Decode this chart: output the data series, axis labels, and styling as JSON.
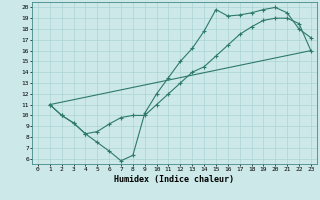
{
  "xlabel": "Humidex (Indice chaleur)",
  "bg_color": "#cce8e8",
  "line_color": "#2d7a6a",
  "grid_color": "#aad4d4",
  "xlim": [
    -0.5,
    23.5
  ],
  "ylim": [
    5.5,
    20.5
  ],
  "xticks": [
    0,
    1,
    2,
    3,
    4,
    5,
    6,
    7,
    8,
    9,
    10,
    11,
    12,
    13,
    14,
    15,
    16,
    17,
    18,
    19,
    20,
    21,
    22,
    23
  ],
  "yticks": [
    6,
    7,
    8,
    9,
    10,
    11,
    12,
    13,
    14,
    15,
    16,
    17,
    18,
    19,
    20
  ],
  "line1_x": [
    1,
    2,
    3,
    4,
    5,
    6,
    7,
    8,
    9,
    10,
    11,
    12,
    13,
    14,
    15,
    16,
    17,
    18,
    19,
    20,
    21,
    22,
    23
  ],
  "line1_y": [
    11,
    10,
    9.3,
    8.3,
    7.5,
    6.7,
    5.8,
    6.3,
    10.2,
    12.0,
    13.5,
    15.0,
    16.2,
    17.8,
    19.8,
    19.2,
    19.3,
    19.5,
    19.8,
    20.0,
    19.5,
    18.0,
    17.2
  ],
  "line2_x": [
    1,
    2,
    3,
    4,
    5,
    6,
    7,
    8,
    9,
    10,
    11,
    12,
    13,
    14,
    15,
    16,
    17,
    18,
    19,
    20,
    21,
    22,
    23
  ],
  "line2_y": [
    11,
    10,
    9.3,
    8.3,
    8.5,
    9.2,
    9.8,
    10.0,
    10.0,
    11.0,
    12.0,
    13.0,
    14.0,
    14.5,
    15.5,
    16.5,
    17.5,
    18.2,
    18.8,
    19.0,
    19.0,
    18.5,
    16.0
  ],
  "line3_x": [
    1,
    23
  ],
  "line3_y": [
    11,
    16
  ]
}
